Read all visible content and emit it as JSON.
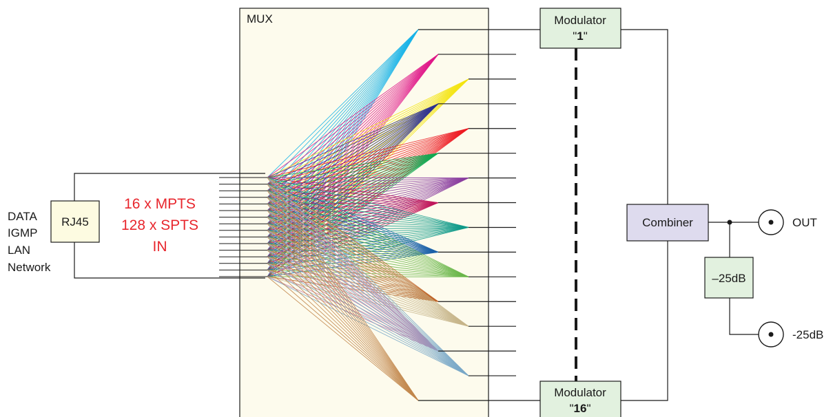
{
  "source": {
    "labels": [
      "DATA",
      "IGMP",
      "LAN",
      "Network"
    ],
    "connector": "RJ45"
  },
  "input": {
    "lines": [
      "16 x MPTS",
      "128 x SPTS",
      "IN"
    ]
  },
  "mux": {
    "label": "MUX",
    "input_count": 16,
    "output_count": 16,
    "fan_colors": [
      "#1ab4e8",
      "#e0198a",
      "#f4e412",
      "#2e3191",
      "#ed1c24",
      "#12a852",
      "#8b3ea0",
      "#c0175c",
      "#0f9a8a",
      "#1b61a8",
      "#6ab74a",
      "#c0662b",
      "#c7b58a",
      "#c57ba8",
      "#7aa8c8",
      "#c2874d"
    ]
  },
  "modulators": [
    {
      "name": "Modulator",
      "number": "1"
    },
    {
      "name": "Modulator",
      "number": "16"
    }
  ],
  "combiner": {
    "label": "Combiner"
  },
  "attenuator": {
    "label": "–25dB"
  },
  "outputs": [
    {
      "label": "OUT"
    },
    {
      "label": "-25dB"
    }
  ],
  "colors": {
    "line": "#1a1a1a",
    "mux_fill": "#fdfbed",
    "rj45_fill": "#fdfbe1",
    "modulator_fill": "#e2f1df",
    "combiner_fill": "#dedbee",
    "attenuator_fill": "#e2f1df",
    "input_text": "#e8262d"
  }
}
